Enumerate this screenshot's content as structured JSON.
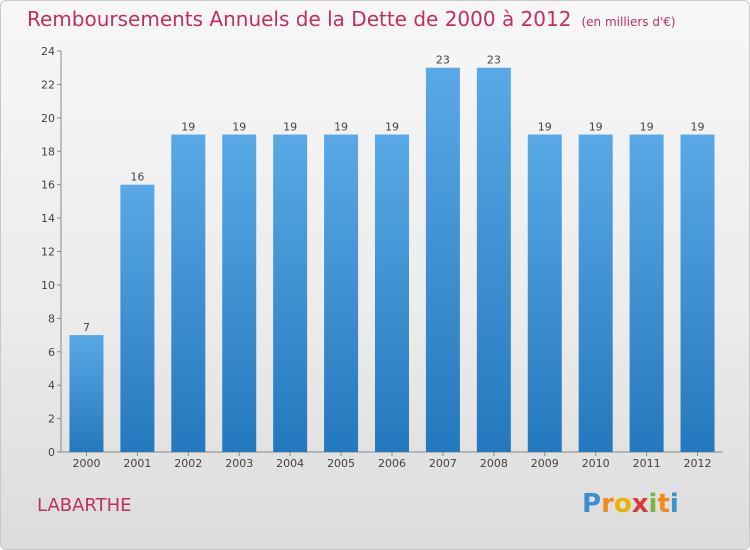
{
  "title": "Remboursements Annuels de la Dette de 2000 à 2012",
  "unit": "(en milliers d'€)",
  "place": "LABARTHE",
  "logo": {
    "letters": [
      "P",
      "r",
      "o",
      "x",
      "i",
      "t",
      "i"
    ]
  },
  "colors": {
    "title": "#c0305c",
    "bar": "#3a8fd0",
    "bar_light": "#5aa9e6",
    "bar_dark": "#2478bd"
  },
  "chart_data": {
    "type": "bar",
    "categories": [
      "2000",
      "2001",
      "2002",
      "2003",
      "2004",
      "2005",
      "2006",
      "2007",
      "2008",
      "2009",
      "2010",
      "2011",
      "2012"
    ],
    "values": [
      7,
      16,
      19,
      19,
      19,
      19,
      19,
      23,
      23,
      19,
      19,
      19,
      19
    ],
    "ylim": [
      0,
      24
    ],
    "yticks": [
      0,
      2,
      4,
      6,
      8,
      10,
      12,
      14,
      16,
      18,
      20,
      22,
      24
    ],
    "grid": false,
    "data_labels": true
  }
}
